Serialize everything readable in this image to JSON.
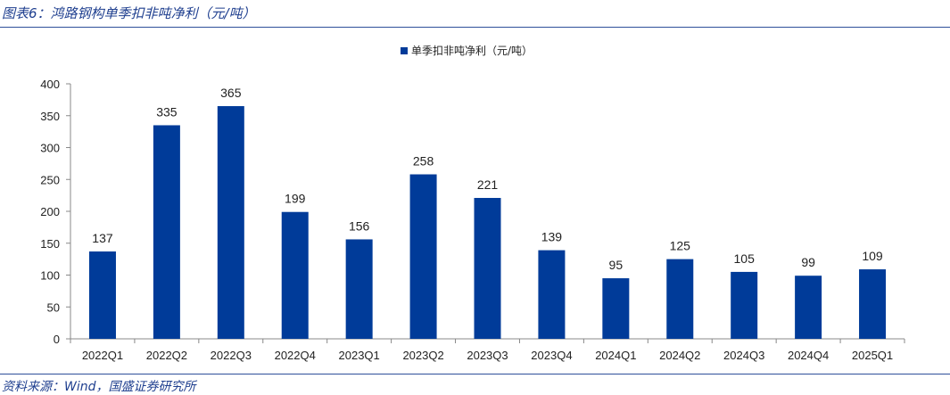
{
  "figure": {
    "title": "图表6：鸿路钢构单季扣非吨净利（元/吨）",
    "source": "资料来源：Wind，国盛证券研究所"
  },
  "colors": {
    "bar": "#003b99",
    "axis": "#888888",
    "rule": "#2e4f9a",
    "title": "#1f3f8f"
  },
  "chart_data": {
    "type": "bar",
    "title": "",
    "xlabel": "",
    "ylabel": "",
    "categories": [
      "2022Q1",
      "2022Q2",
      "2022Q3",
      "2022Q4",
      "2023Q1",
      "2023Q2",
      "2023Q3",
      "2023Q4",
      "2024Q1",
      "2024Q2",
      "2024Q3",
      "2024Q4",
      "2025Q1"
    ],
    "series": [
      {
        "name": "单季扣非吨净利（元/吨）",
        "values": [
          137,
          335,
          365,
          199,
          156,
          258,
          221,
          139,
          95,
          125,
          105,
          99,
          109
        ]
      }
    ],
    "ylim": [
      0,
      400
    ],
    "yticks": [
      0,
      50,
      100,
      150,
      200,
      250,
      300,
      350,
      400
    ],
    "grid": false,
    "legend_position": "top-center",
    "data_labels": true
  }
}
